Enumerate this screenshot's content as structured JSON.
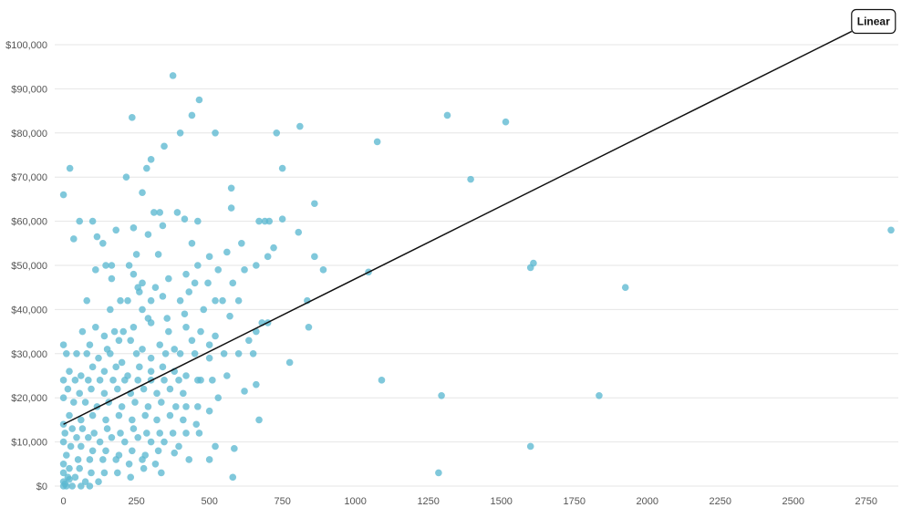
{
  "chart_data": {
    "type": "scatter",
    "title": "",
    "xlabel": "",
    "ylabel": "",
    "xlim": [
      -30,
      2860
    ],
    "ylim": [
      0,
      100000
    ],
    "x_ticks": [
      0,
      250,
      500,
      750,
      1000,
      1250,
      1500,
      1750,
      2000,
      2250,
      2500,
      2750
    ],
    "y_ticks": [
      0,
      10000,
      20000,
      30000,
      40000,
      50000,
      60000,
      70000,
      80000,
      90000,
      100000
    ],
    "y_tick_labels": [
      "$0",
      "$10,000",
      "$20,000",
      "$30,000",
      "$40,000",
      "$50,000",
      "$60,000",
      "$70,000",
      "$80,000",
      "$90,000",
      "$100,000"
    ],
    "grid": true,
    "colors": {
      "points": "#5cb8d1",
      "trendline": "#111111",
      "grid": "#e6e6e6"
    },
    "trendline": {
      "label": "Linear",
      "x": [
        0,
        2700
      ],
      "y": [
        14000,
        103000
      ]
    },
    "series": [
      {
        "points": [
          [
            375,
            93000
          ],
          [
            465,
            87500
          ],
          [
            235,
            83500
          ],
          [
            440,
            84000
          ],
          [
            400,
            80000
          ],
          [
            520,
            80000
          ],
          [
            730,
            80000
          ],
          [
            810,
            81500
          ],
          [
            1315,
            84000
          ],
          [
            1515,
            82500
          ],
          [
            1075,
            78000
          ],
          [
            345,
            77000
          ],
          [
            300,
            74000
          ],
          [
            285,
            72000
          ],
          [
            22,
            72000
          ],
          [
            750,
            72000
          ],
          [
            215,
            70000
          ],
          [
            1395,
            69500
          ],
          [
            0,
            66000
          ],
          [
            270,
            66500
          ],
          [
            575,
            67500
          ],
          [
            310,
            62000
          ],
          [
            330,
            62000
          ],
          [
            390,
            62000
          ],
          [
            575,
            63000
          ],
          [
            705,
            60000
          ],
          [
            750,
            60500
          ],
          [
            805,
            57500
          ],
          [
            860,
            64000
          ],
          [
            55,
            60000
          ],
          [
            100,
            60000
          ],
          [
            415,
            60500
          ],
          [
            460,
            60000
          ],
          [
            240,
            58500
          ],
          [
            180,
            58000
          ],
          [
            290,
            57000
          ],
          [
            340,
            59000
          ],
          [
            690,
            60000
          ],
          [
            670,
            60000
          ],
          [
            35,
            56000
          ],
          [
            115,
            56500
          ],
          [
            135,
            55000
          ],
          [
            440,
            55000
          ],
          [
            560,
            53000
          ],
          [
            610,
            55000
          ],
          [
            720,
            54000
          ],
          [
            250,
            52500
          ],
          [
            325,
            52500
          ],
          [
            500,
            52000
          ],
          [
            700,
            52000
          ],
          [
            860,
            52000
          ],
          [
            225,
            50000
          ],
          [
            145,
            50000
          ],
          [
            165,
            50000
          ],
          [
            460,
            50000
          ],
          [
            420,
            48000
          ],
          [
            530,
            49000
          ],
          [
            620,
            49000
          ],
          [
            660,
            50000
          ],
          [
            890,
            49000
          ],
          [
            1045,
            48500
          ],
          [
            1600,
            49500
          ],
          [
            1610,
            50500
          ],
          [
            1925,
            45000
          ],
          [
            165,
            47000
          ],
          [
            110,
            49000
          ],
          [
            240,
            48000
          ],
          [
            270,
            46000
          ],
          [
            315,
            45000
          ],
          [
            360,
            47000
          ],
          [
            255,
            45000
          ],
          [
            450,
            46000
          ],
          [
            495,
            46000
          ],
          [
            580,
            46000
          ],
          [
            260,
            44000
          ],
          [
            220,
            42000
          ],
          [
            430,
            44000
          ],
          [
            520,
            42000
          ],
          [
            545,
            42000
          ],
          [
            600,
            42000
          ],
          [
            835,
            42000
          ],
          [
            80,
            42000
          ],
          [
            195,
            42000
          ],
          [
            300,
            42000
          ],
          [
            340,
            43000
          ],
          [
            400,
            42000
          ],
          [
            270,
            40000
          ],
          [
            160,
            40000
          ],
          [
            290,
            38000
          ],
          [
            355,
            38000
          ],
          [
            415,
            39000
          ],
          [
            480,
            40000
          ],
          [
            570,
            38500
          ],
          [
            680,
            37000
          ],
          [
            700,
            37000
          ],
          [
            840,
            36000
          ],
          [
            65,
            35000
          ],
          [
            110,
            36000
          ],
          [
            140,
            34000
          ],
          [
            175,
            35000
          ],
          [
            205,
            35000
          ],
          [
            240,
            36000
          ],
          [
            300,
            37000
          ],
          [
            360,
            35000
          ],
          [
            420,
            36000
          ],
          [
            470,
            35000
          ],
          [
            520,
            34000
          ],
          [
            635,
            33000
          ],
          [
            660,
            35000
          ],
          [
            90,
            32000
          ],
          [
            150,
            31000
          ],
          [
            190,
            33000
          ],
          [
            230,
            33000
          ],
          [
            270,
            31000
          ],
          [
            330,
            32000
          ],
          [
            380,
            31000
          ],
          [
            440,
            33000
          ],
          [
            500,
            32000
          ],
          [
            0,
            32000
          ],
          [
            10,
            30000
          ],
          [
            45,
            30000
          ],
          [
            80,
            30000
          ],
          [
            120,
            29000
          ],
          [
            160,
            30000
          ],
          [
            200,
            28000
          ],
          [
            250,
            30000
          ],
          [
            300,
            29000
          ],
          [
            350,
            30000
          ],
          [
            400,
            30000
          ],
          [
            450,
            30000
          ],
          [
            500,
            29000
          ],
          [
            550,
            30000
          ],
          [
            600,
            30000
          ],
          [
            650,
            30000
          ],
          [
            775,
            28000
          ],
          [
            20,
            26000
          ],
          [
            60,
            25000
          ],
          [
            100,
            27000
          ],
          [
            140,
            26000
          ],
          [
            180,
            27000
          ],
          [
            220,
            25000
          ],
          [
            260,
            27000
          ],
          [
            300,
            26000
          ],
          [
            340,
            27000
          ],
          [
            380,
            26000
          ],
          [
            420,
            25000
          ],
          [
            460,
            24000
          ],
          [
            510,
            24000
          ],
          [
            560,
            25000
          ],
          [
            0,
            24000
          ],
          [
            40,
            24000
          ],
          [
            85,
            24000
          ],
          [
            125,
            24000
          ],
          [
            170,
            24000
          ],
          [
            210,
            24000
          ],
          [
            255,
            24000
          ],
          [
            300,
            24000
          ],
          [
            345,
            24000
          ],
          [
            395,
            24000
          ],
          [
            470,
            24000
          ],
          [
            1090,
            24000
          ],
          [
            15,
            22000
          ],
          [
            55,
            21000
          ],
          [
            95,
            22000
          ],
          [
            140,
            21000
          ],
          [
            185,
            22000
          ],
          [
            230,
            21000
          ],
          [
            275,
            22000
          ],
          [
            320,
            21000
          ],
          [
            365,
            22000
          ],
          [
            410,
            21000
          ],
          [
            530,
            20000
          ],
          [
            0,
            20000
          ],
          [
            35,
            19000
          ],
          [
            75,
            19000
          ],
          [
            115,
            18000
          ],
          [
            155,
            19000
          ],
          [
            200,
            18000
          ],
          [
            245,
            19000
          ],
          [
            290,
            18000
          ],
          [
            335,
            19000
          ],
          [
            385,
            18000
          ],
          [
            420,
            18000
          ],
          [
            460,
            18000
          ],
          [
            500,
            17000
          ],
          [
            620,
            21500
          ],
          [
            660,
            23000
          ],
          [
            1295,
            20500
          ],
          [
            1835,
            20500
          ],
          [
            20,
            16000
          ],
          [
            60,
            15000
          ],
          [
            100,
            16000
          ],
          [
            145,
            15000
          ],
          [
            190,
            16000
          ],
          [
            235,
            15000
          ],
          [
            280,
            16000
          ],
          [
            320,
            15000
          ],
          [
            365,
            16000
          ],
          [
            410,
            15000
          ],
          [
            455,
            14000
          ],
          [
            670,
            15000
          ],
          [
            0,
            14000
          ],
          [
            30,
            13000
          ],
          [
            65,
            13000
          ],
          [
            105,
            12000
          ],
          [
            150,
            13000
          ],
          [
            195,
            12000
          ],
          [
            240,
            13000
          ],
          [
            285,
            12000
          ],
          [
            330,
            12000
          ],
          [
            375,
            12000
          ],
          [
            420,
            12000
          ],
          [
            465,
            12000
          ],
          [
            5,
            12000
          ],
          [
            45,
            11000
          ],
          [
            85,
            11000
          ],
          [
            125,
            10000
          ],
          [
            165,
            11000
          ],
          [
            210,
            10000
          ],
          [
            255,
            11000
          ],
          [
            300,
            10000
          ],
          [
            345,
            10000
          ],
          [
            395,
            9000
          ],
          [
            520,
            9000
          ],
          [
            585,
            8500
          ],
          [
            1600,
            9000
          ],
          [
            0,
            10000
          ],
          [
            25,
            9000
          ],
          [
            60,
            9000
          ],
          [
            100,
            8000
          ],
          [
            145,
            8000
          ],
          [
            190,
            7000
          ],
          [
            235,
            8000
          ],
          [
            280,
            7000
          ],
          [
            325,
            8000
          ],
          [
            380,
            7500
          ],
          [
            430,
            6000
          ],
          [
            500,
            6000
          ],
          [
            10,
            7000
          ],
          [
            50,
            6000
          ],
          [
            90,
            6000
          ],
          [
            135,
            6000
          ],
          [
            180,
            6000
          ],
          [
            225,
            5000
          ],
          [
            270,
            6000
          ],
          [
            315,
            5000
          ],
          [
            0,
            5000
          ],
          [
            20,
            4000
          ],
          [
            55,
            4000
          ],
          [
            95,
            3000
          ],
          [
            140,
            3000
          ],
          [
            185,
            3000
          ],
          [
            230,
            2000
          ],
          [
            275,
            4000
          ],
          [
            335,
            3000
          ],
          [
            0,
            3000
          ],
          [
            15,
            2000
          ],
          [
            40,
            2000
          ],
          [
            75,
            1000
          ],
          [
            120,
            1000
          ],
          [
            0,
            1000
          ],
          [
            10,
            0
          ],
          [
            30,
            0
          ],
          [
            60,
            0
          ],
          [
            90,
            0
          ],
          [
            0,
            0
          ],
          [
            5,
            500
          ],
          [
            20,
            1500
          ],
          [
            580,
            2000
          ],
          [
            1285,
            3000
          ],
          [
            2835,
            58000
          ]
        ]
      }
    ]
  }
}
